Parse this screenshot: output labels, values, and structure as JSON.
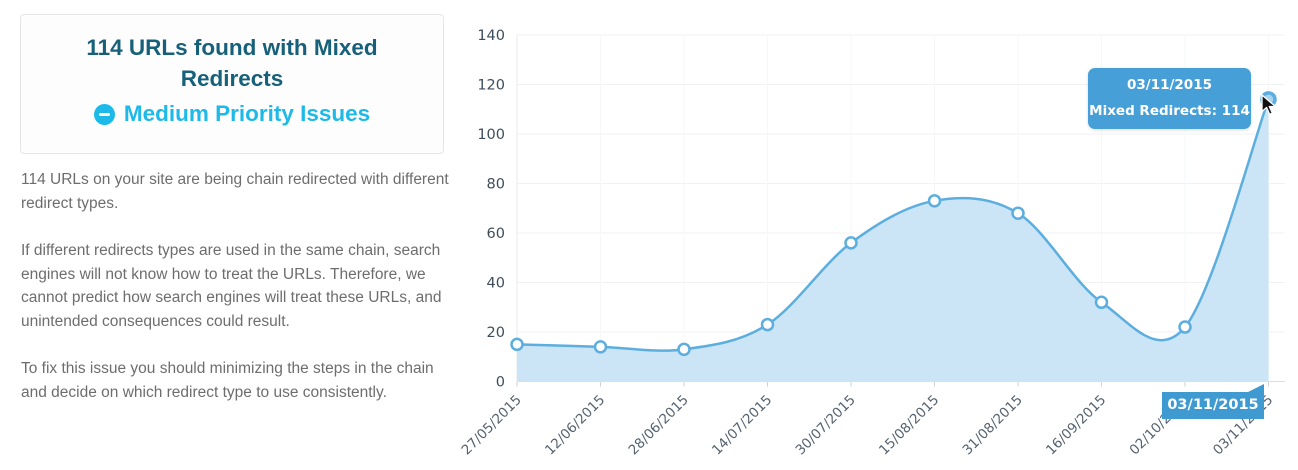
{
  "theme": {
    "accent-cyan": "#1db9e9",
    "title-teal": "#17607a",
    "body-gray": "#6d6d6d",
    "tooltip-blue": "#479fd8",
    "badge-blue": "#3f9ad2"
  },
  "panel": {
    "title": "114 URLs found with Mixed Redirects",
    "priority_label": "Medium Priority Issues",
    "priority_icon": "minus-circle-icon",
    "paragraphs": [
      "114 URLs on your site are being chain redirected with different redirect types.",
      "If different redirects types are used in the same chain, search engines will not know how to treat the URLs. Therefore, we cannot predict how search engines will treat these URLs, and unintended consequences could result.",
      "To fix this issue you should minimizing the steps in the chain and decide on which redirect type to use consistently."
    ]
  },
  "tooltip": {
    "date": "03/11/2015",
    "text": "Mixed Redirects: 114"
  },
  "axis_badge": {
    "date": "03/11/2015"
  },
  "chart_data": {
    "type": "area",
    "title": "",
    "xlabel": "",
    "ylabel": "",
    "categories": [
      "27/05/2015",
      "12/06/2015",
      "28/06/2015",
      "14/07/2015",
      "30/07/2015",
      "15/08/2015",
      "31/08/2015",
      "16/09/2015",
      "02/10/2015",
      "03/11/2015"
    ],
    "series": [
      {
        "name": "Mixed Redirects",
        "values": [
          15,
          14,
          13,
          23,
          56,
          73,
          68,
          32,
          22,
          114
        ]
      }
    ],
    "ylim": [
      0,
      140
    ],
    "ytick_interval": 20,
    "grid": true,
    "legend": "none",
    "x_label_rotation": -45,
    "curve": "smooth-spline",
    "line_color": "#5caedf",
    "fill_color": "#cbe5f6",
    "marker": "circle-white-blue-stroke",
    "highlight": {
      "index": 9,
      "category": "03/11/2015",
      "value": 114
    }
  }
}
